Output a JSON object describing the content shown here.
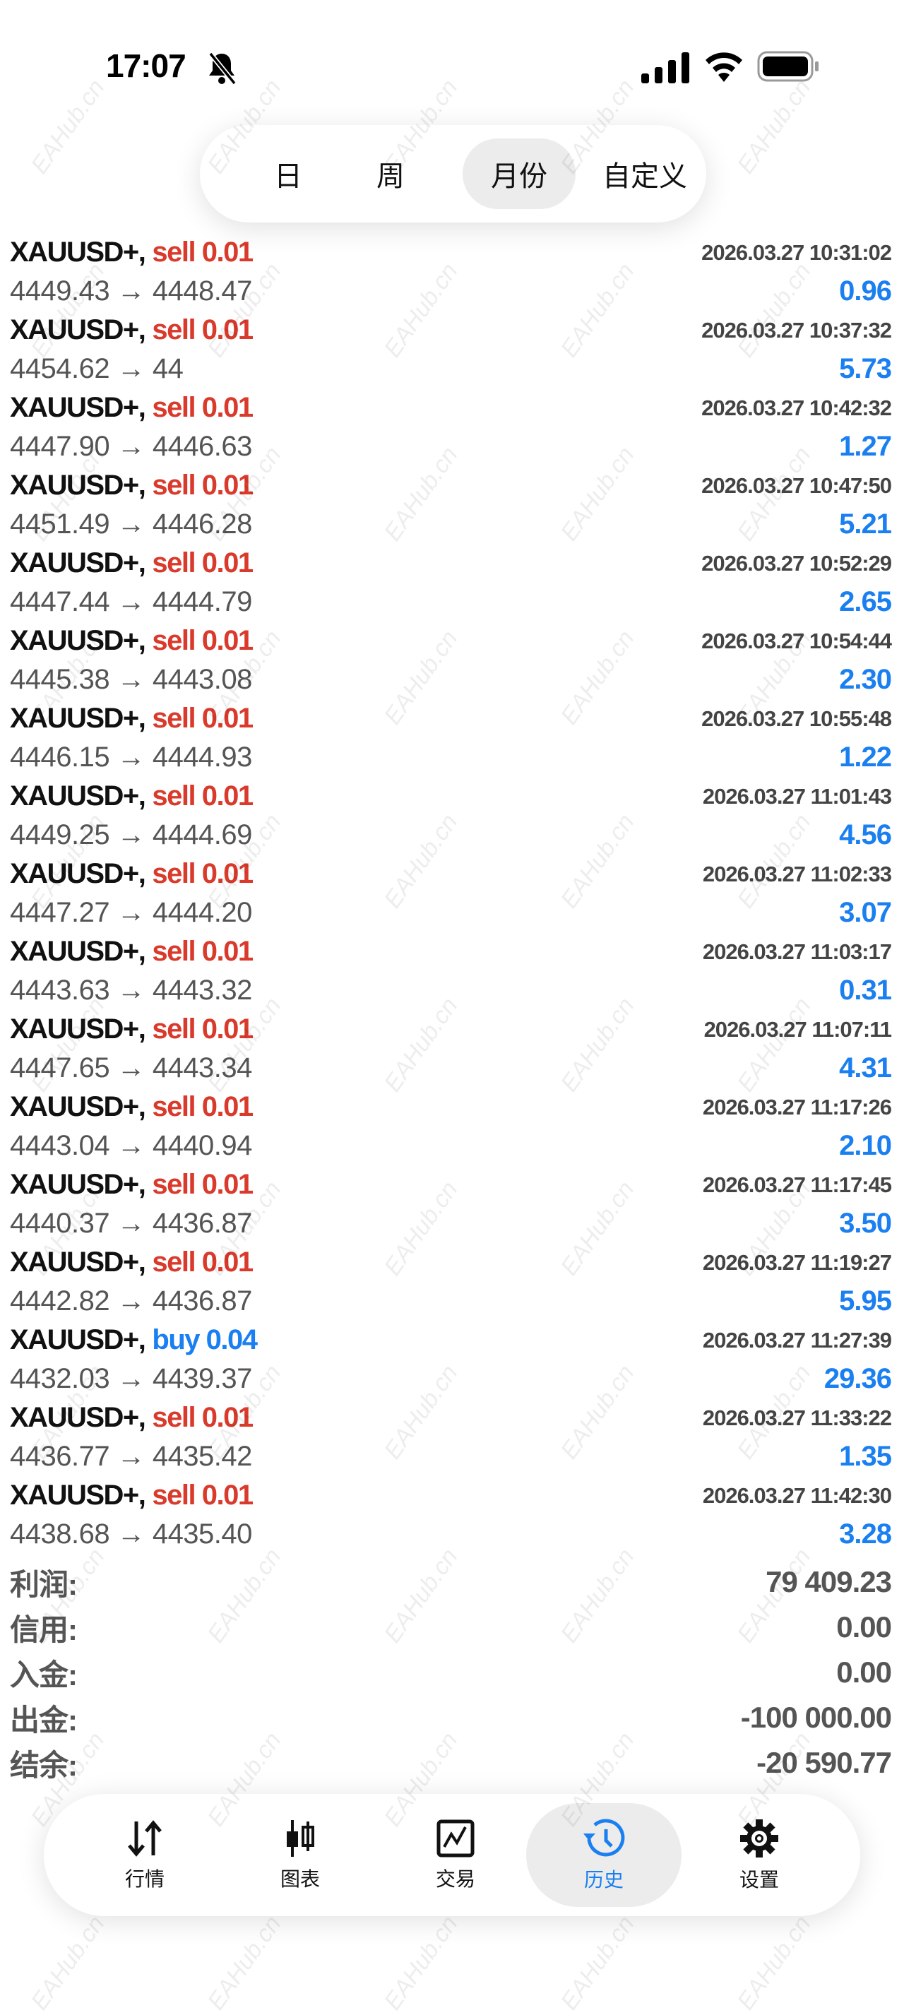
{
  "status_bar": {
    "time": "17:07"
  },
  "period_tabs": [
    {
      "label": "日"
    },
    {
      "label": "周"
    },
    {
      "label": "月份",
      "active": true
    },
    {
      "label": "自定义"
    }
  ],
  "trades": [
    {
      "symbol": "XAUUSD+,",
      "side": "sell",
      "volume": "sell 0.01",
      "date": "2026.03.27 10:31:02",
      "prices": "4449.43 → 4448.47",
      "profit": "0.96"
    },
    {
      "symbol": "XAUUSD+,",
      "side": "sell",
      "volume": "sell 0.01",
      "date": "2026.03.27 10:37:32",
      "prices": "4454.62 → 44",
      "profit": "5.73"
    },
    {
      "symbol": "XAUUSD+,",
      "side": "sell",
      "volume": "sell 0.01",
      "date": "2026.03.27 10:42:32",
      "prices": "4447.90 → 4446.63",
      "profit": "1.27"
    },
    {
      "symbol": "XAUUSD+,",
      "side": "sell",
      "volume": "sell 0.01",
      "date": "2026.03.27 10:47:50",
      "prices": "4451.49 → 4446.28",
      "profit": "5.21"
    },
    {
      "symbol": "XAUUSD+,",
      "side": "sell",
      "volume": "sell 0.01",
      "date": "2026.03.27 10:52:29",
      "prices": "4447.44 → 4444.79",
      "profit": "2.65"
    },
    {
      "symbol": "XAUUSD+,",
      "side": "sell",
      "volume": "sell 0.01",
      "date": "2026.03.27 10:54:44",
      "prices": "4445.38 → 4443.08",
      "profit": "2.30"
    },
    {
      "symbol": "XAUUSD+,",
      "side": "sell",
      "volume": "sell 0.01",
      "date": "2026.03.27 10:55:48",
      "prices": "4446.15 → 4444.93",
      "profit": "1.22"
    },
    {
      "symbol": "XAUUSD+,",
      "side": "sell",
      "volume": "sell 0.01",
      "date": "2026.03.27 11:01:43",
      "prices": "4449.25 → 4444.69",
      "profit": "4.56"
    },
    {
      "symbol": "XAUUSD+,",
      "side": "sell",
      "volume": "sell 0.01",
      "date": "2026.03.27 11:02:33",
      "prices": "4447.27 → 4444.20",
      "profit": "3.07"
    },
    {
      "symbol": "XAUUSD+,",
      "side": "sell",
      "volume": "sell 0.01",
      "date": "2026.03.27 11:03:17",
      "prices": "4443.63 → 4443.32",
      "profit": "0.31"
    },
    {
      "symbol": "XAUUSD+,",
      "side": "sell",
      "volume": "sell 0.01",
      "date": "2026.03.27 11:07:11",
      "prices": "4447.65 → 4443.34",
      "profit": "4.31"
    },
    {
      "symbol": "XAUUSD+,",
      "side": "sell",
      "volume": "sell 0.01",
      "date": "2026.03.27 11:17:26",
      "prices": "4443.04 → 4440.94",
      "profit": "2.10"
    },
    {
      "symbol": "XAUUSD+,",
      "side": "sell",
      "volume": "sell 0.01",
      "date": "2026.03.27 11:17:45",
      "prices": "4440.37 → 4436.87",
      "profit": "3.50"
    },
    {
      "symbol": "XAUUSD+,",
      "side": "sell",
      "volume": "sell 0.01",
      "date": "2026.03.27 11:19:27",
      "prices": "4442.82 → 4436.87",
      "profit": "5.95"
    },
    {
      "symbol": "XAUUSD+,",
      "side": "buy",
      "volume": "buy 0.04",
      "date": "2026.03.27 11:27:39",
      "prices": "4432.03 → 4439.37",
      "profit": "29.36"
    },
    {
      "symbol": "XAUUSD+,",
      "side": "sell",
      "volume": "sell 0.01",
      "date": "2026.03.27 11:33:22",
      "prices": "4436.77 → 4435.42",
      "profit": "1.35"
    },
    {
      "symbol": "XAUUSD+,",
      "side": "sell",
      "volume": "sell 0.01",
      "date": "2026.03.27 11:42:30",
      "prices": "4438.68 → 4435.40",
      "profit": "3.28"
    }
  ],
  "summary": [
    {
      "label": "利润:",
      "value": "79 409.23"
    },
    {
      "label": "信用:",
      "value": "0.00"
    },
    {
      "label": "入金:",
      "value": "0.00"
    },
    {
      "label": "出金:",
      "value": "-100 000.00"
    },
    {
      "label": "结余:",
      "value": "-20 590.77"
    }
  ],
  "nav": [
    {
      "label": "行情",
      "icon": "quotes-arrows-icon"
    },
    {
      "label": "图表",
      "icon": "candlestick-chart-icon"
    },
    {
      "label": "交易",
      "icon": "trade-chart-icon"
    },
    {
      "label": "历史",
      "icon": "history-clock-icon",
      "active": true
    },
    {
      "label": "设置",
      "icon": "settings-gear-icon"
    }
  ],
  "colors": {
    "sell": "#d93a2b",
    "buy": "#1a7ff0",
    "profit": "#1a7ff0",
    "active_nav": "#1a7ff0"
  },
  "watermark": "EAHub.cn"
}
